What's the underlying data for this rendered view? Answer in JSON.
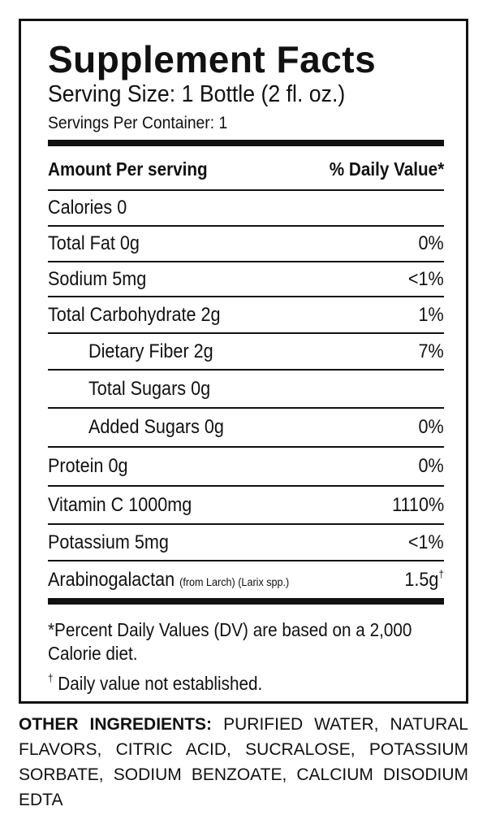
{
  "title": "Supplement Facts",
  "serving_size": "Serving Size: 1 Bottle (2 fl. oz.)",
  "servings_per_container": "Servings Per Container: 1",
  "header": {
    "amount": "Amount Per serving",
    "dv": "% Daily Value*"
  },
  "rows": [
    {
      "label": "Calories 0",
      "dv": "",
      "indent": false
    },
    {
      "label": "Total Fat 0g",
      "dv": "0%",
      "indent": false
    },
    {
      "label": "Sodium 5mg",
      "dv": "<1%",
      "indent": false
    },
    {
      "label": "Total Carbohydrate 2g",
      "dv": "1%",
      "indent": false
    },
    {
      "label": "Dietary Fiber 2g",
      "dv": "7%",
      "indent": true
    },
    {
      "label": "Total Sugars 0g",
      "dv": "",
      "indent": true
    },
    {
      "label": "Added Sugars 0g",
      "dv": "0%",
      "indent": true
    },
    {
      "label": "Protein 0g",
      "dv": "0%",
      "indent": false
    },
    {
      "label": "Vitamin C 1000mg",
      "dv": "1110%",
      "indent": false
    },
    {
      "label": "Potassium 5mg",
      "dv": "<1%",
      "indent": false
    },
    {
      "label": "Arabinogalactan",
      "sub": "(from Larch) (Larix spp.)",
      "dv": "1.5g",
      "dv_mark": "†",
      "indent": false
    }
  ],
  "footnote_dv": "*Percent Daily Values (DV) are based on a 2,000 Calorie diet.",
  "footnote_dagger_mark": "†",
  "footnote_dagger": "Daily value not established.",
  "other_ingredients": {
    "label": "OTHER INGREDIENTS:",
    "text": "PURIFIED WATER, NATURAL FLAVORS, CITRIC ACID, SUCRALOSE, POTASSIUM SORBATE, SODIUM BENZOATE, CALCIUM DISODIUM EDTA"
  }
}
